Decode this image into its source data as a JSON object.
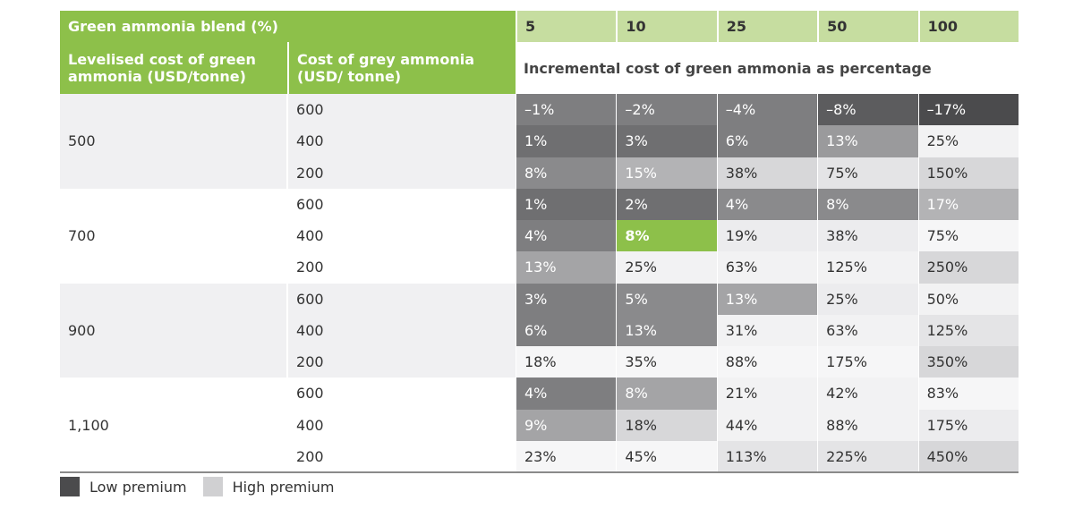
{
  "chart_data": {
    "type": "table",
    "blend_header": "Green ammonia blend (%)",
    "blends": [
      "5",
      "10",
      "25",
      "50",
      "100"
    ],
    "levelised_header": "Levelised cost of green ammonia (USD/tonne)",
    "grey_header": "Cost of grey ammonia (USD/ tonne)",
    "incremental_header": "Incremental cost of green ammonia as percentage",
    "groups": [
      {
        "levelised": "500",
        "rows": [
          {
            "grey": "600",
            "values": [
              "–1%",
              "–2%",
              "–4%",
              "–8%",
              "–17%"
            ],
            "shades": [
              "#7e7e80",
              "#7e7e80",
              "#7e7e80",
              "#5c5c5e",
              "#4b4b4d"
            ]
          },
          {
            "grey": "400",
            "values": [
              "1%",
              "3%",
              "6%",
              "13%",
              "25%"
            ],
            "shades": [
              "#6f6f71",
              "#6f6f71",
              "#7e7e80",
              "#9a9a9c",
              "#f2f2f3"
            ]
          },
          {
            "grey": "200",
            "values": [
              "8%",
              "15%",
              "38%",
              "75%",
              "150%"
            ],
            "shades": [
              "#8a8a8c",
              "#b3b3b5",
              "#d7d7d9",
              "#e4e4e6",
              "#d7d7d9"
            ]
          }
        ]
      },
      {
        "levelised": "700",
        "rows": [
          {
            "grey": "600",
            "values": [
              "1%",
              "2%",
              "4%",
              "8%",
              "17%"
            ],
            "shades": [
              "#6f6f71",
              "#6f6f71",
              "#8a8a8c",
              "#8a8a8c",
              "#b3b3b5"
            ]
          },
          {
            "grey": "400",
            "values": [
              "4%",
              "8%",
              "19%",
              "38%",
              "75%"
            ],
            "shades": [
              "#7e7e80",
              "#8dc04a",
              "#ececee",
              "#ececee",
              "#f6f6f7"
            ]
          },
          {
            "grey": "200",
            "values": [
              "13%",
              "25%",
              "63%",
              "125%",
              "250%"
            ],
            "shades": [
              "#a4a4a6",
              "#f2f2f3",
              "#f2f2f3",
              "#f2f2f3",
              "#d7d7d9"
            ]
          }
        ]
      },
      {
        "levelised": "900",
        "rows": [
          {
            "grey": "600",
            "values": [
              "3%",
              "5%",
              "13%",
              "25%",
              "50%"
            ],
            "shades": [
              "#7e7e80",
              "#8a8a8c",
              "#a4a4a6",
              "#ececee",
              "#f2f2f3"
            ]
          },
          {
            "grey": "400",
            "values": [
              "6%",
              "13%",
              "31%",
              "63%",
              "125%"
            ],
            "shades": [
              "#7e7e80",
              "#8a8a8c",
              "#f2f2f3",
              "#f2f2f3",
              "#e4e4e6"
            ]
          },
          {
            "grey": "200",
            "values": [
              "18%",
              "35%",
              "88%",
              "175%",
              "350%"
            ],
            "shades": [
              "#f6f6f7",
              "#f6f6f7",
              "#f6f6f7",
              "#f6f6f7",
              "#d7d7d9"
            ]
          }
        ]
      },
      {
        "levelised": "1,100",
        "rows": [
          {
            "grey": "600",
            "values": [
              "4%",
              "8%",
              "21%",
              "42%",
              "83%"
            ],
            "shades": [
              "#7e7e80",
              "#a4a4a6",
              "#f2f2f3",
              "#f2f2f3",
              "#f6f6f7"
            ]
          },
          {
            "grey": "400",
            "values": [
              "9%",
              "18%",
              "44%",
              "88%",
              "175%"
            ],
            "shades": [
              "#a4a4a6",
              "#d7d7d9",
              "#f2f2f3",
              "#f2f2f3",
              "#ececee"
            ]
          },
          {
            "grey": "200",
            "values": [
              "23%",
              "45%",
              "113%",
              "225%",
              "450%"
            ],
            "shades": [
              "#f6f6f7",
              "#f6f6f7",
              "#e4e4e6",
              "#e4e4e6",
              "#d7d7d9"
            ]
          }
        ]
      }
    ],
    "legend": [
      {
        "label": "Low premium",
        "color": "#4b4b4d"
      },
      {
        "label": "High premium",
        "color": "#d0d0d2"
      }
    ]
  }
}
